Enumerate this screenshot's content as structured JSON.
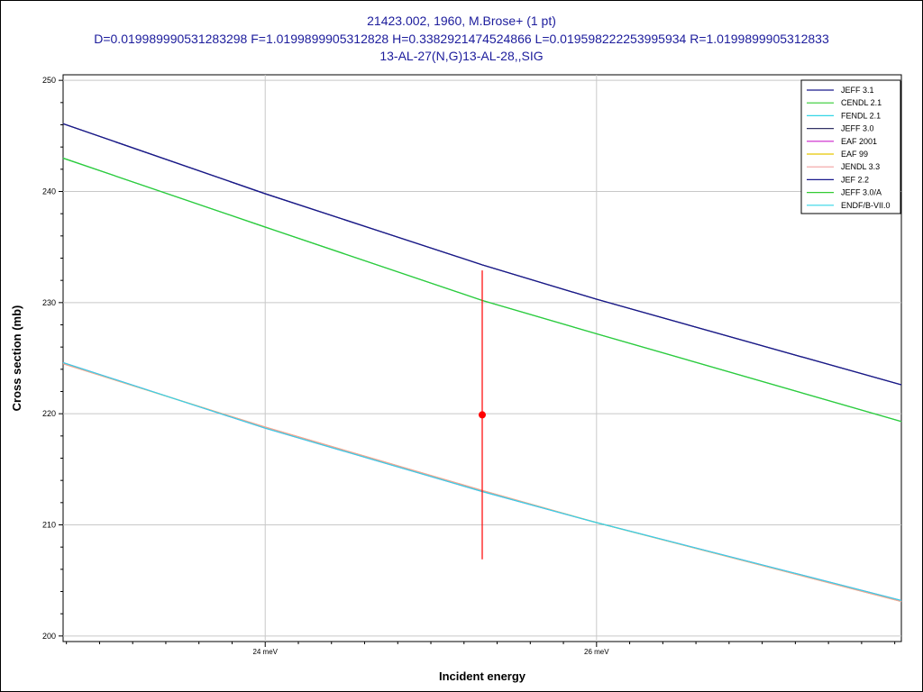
{
  "titles": {
    "line1": "21423.002, 1960, M.Brose+ (1 pt)",
    "line2": "D=0.019989990531283298 F=1.0199899905312828 H=0.3382921474524866 L=0.019598222253995934 R=1.0199899905312833",
    "line3": "13-AL-27(N,G)13-AL-28,,SIG"
  },
  "chart_data": {
    "type": "line",
    "title": "21423.002, 1960, M.Brose+ (1 pt)",
    "xlabel": "Incident energy",
    "ylabel": "Cross section (mb)",
    "xlim": [
      22.78,
      27.84
    ],
    "ylim": [
      199.5,
      250.5
    ],
    "x_unit": "meV",
    "grid": true,
    "legend_position": "top-right",
    "xticks": [
      {
        "value": 24,
        "label": "24 meV"
      },
      {
        "value": 26,
        "label": "26 meV"
      }
    ],
    "yticks": [
      {
        "value": 200,
        "label": "200"
      },
      {
        "value": 210,
        "label": "210"
      },
      {
        "value": 220,
        "label": "220"
      },
      {
        "value": 230,
        "label": "230"
      },
      {
        "value": 240,
        "label": "240"
      },
      {
        "value": 250,
        "label": "250"
      }
    ],
    "series": [
      {
        "name": "JEFF 3.1",
        "color": "#1a1a8c",
        "x": [
          22.78,
          24,
          25.31,
          26,
          27.84
        ],
        "y": [
          246.1,
          239.8,
          233.4,
          230.3,
          222.6
        ]
      },
      {
        "name": "CENDL 2.1",
        "color": "#33cc33",
        "x": [
          22.78,
          24,
          25.31,
          26,
          27.84
        ],
        "y": [
          243.0,
          236.8,
          230.2,
          227.2,
          219.3
        ]
      },
      {
        "name": "FENDL 2.1",
        "color": "#33d6e6",
        "x": [
          22.78,
          24,
          25.31,
          26,
          27.84
        ],
        "y": [
          243.0,
          236.8,
          230.2,
          227.2,
          219.3
        ]
      },
      {
        "name": "JEFF 3.0",
        "color": "#333366",
        "x": [
          22.78,
          24,
          25.31,
          26,
          27.84
        ],
        "y": [
          246.1,
          239.8,
          233.4,
          230.3,
          222.6
        ]
      },
      {
        "name": "EAF 2001",
        "color": "#cc22cc",
        "x": [
          22.78,
          24,
          25.31,
          26,
          27.84
        ],
        "y": [
          224.6,
          218.7,
          213.0,
          210.2,
          203.2
        ]
      },
      {
        "name": "EAF 99",
        "color": "#e6c800",
        "x": [
          22.78,
          24,
          25.31,
          26,
          27.84
        ],
        "y": [
          224.5,
          218.8,
          213.1,
          210.2,
          203.1
        ]
      },
      {
        "name": "JENDL 3.3",
        "color": "#f2a0a0",
        "x": [
          22.78,
          24,
          25.31,
          26,
          27.84
        ],
        "y": [
          224.5,
          218.8,
          213.1,
          210.2,
          203.1
        ]
      },
      {
        "name": "JEF 2.2",
        "color": "#1a1a8c",
        "x": [
          22.78,
          24,
          25.31,
          26,
          27.84
        ],
        "y": [
          246.1,
          239.8,
          233.4,
          230.3,
          222.6
        ]
      },
      {
        "name": "JEFF 3.0/A",
        "color": "#33cc33",
        "x": [
          22.78,
          24,
          25.31,
          26,
          27.84
        ],
        "y": [
          243.0,
          236.8,
          230.2,
          227.2,
          219.3
        ]
      },
      {
        "name": "ENDF/B-VII.0",
        "color": "#33d6e6",
        "x": [
          22.78,
          24,
          25.31,
          26,
          27.84
        ],
        "y": [
          224.6,
          218.7,
          213.0,
          210.2,
          203.2
        ]
      }
    ],
    "points": [
      {
        "name": "21423.002",
        "x": 25.31,
        "y": 219.9,
        "yerr_low": 206.9,
        "yerr_high": 232.9,
        "color": "#ff0000"
      }
    ]
  }
}
